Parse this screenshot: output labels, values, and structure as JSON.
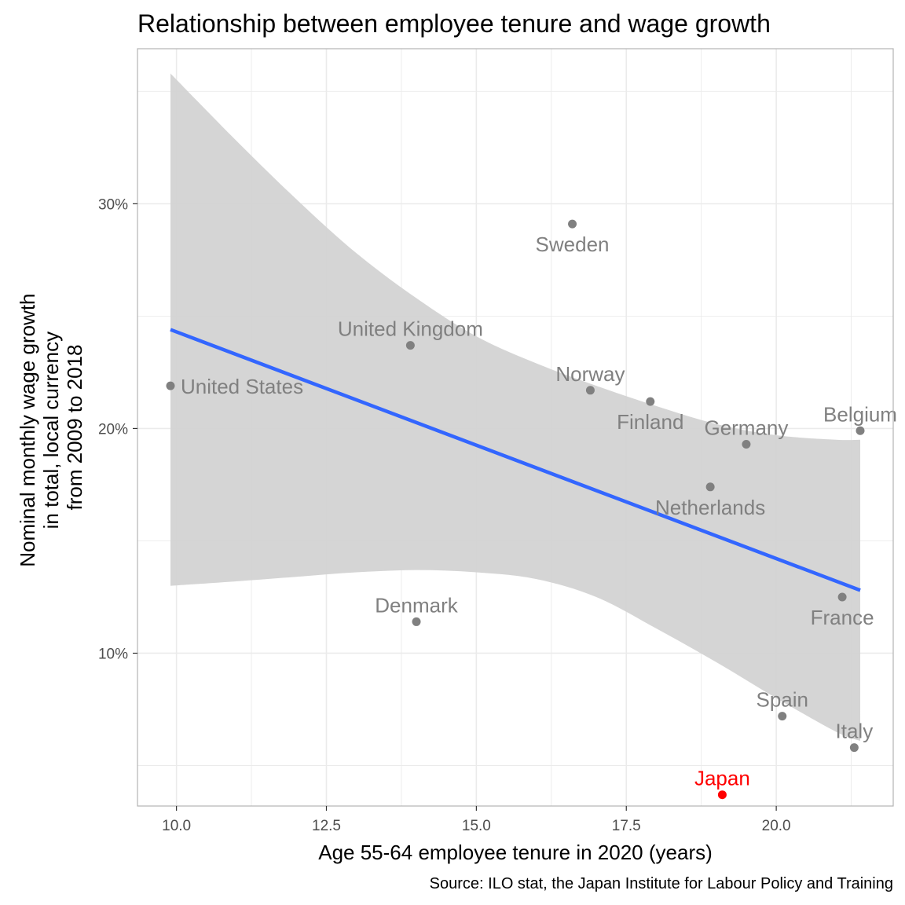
{
  "chart_data": {
    "type": "scatter",
    "title": "Relationship between employee tenure and wage growth",
    "xlabel": "Age 55-64 employee tenure in 2020 (years)",
    "ylabel_lines": [
      "Nominal monthly wage growth",
      "in total, local currency",
      "from 2009 to 2018"
    ],
    "caption": "Source: ILO stat, the Japan Institute for Labour Policy and Training",
    "xlim": [
      9.35,
      21.95
    ],
    "ylim": [
      3.2,
      36.9
    ],
    "x_ticks": [
      {
        "value": 10.0,
        "label": "10.0"
      },
      {
        "value": 12.5,
        "label": "12.5"
      },
      {
        "value": 15.0,
        "label": "15.0"
      },
      {
        "value": 17.5,
        "label": "17.5"
      },
      {
        "value": 20.0,
        "label": "20.0"
      }
    ],
    "y_ticks": [
      {
        "value": 10,
        "label": "10%"
      },
      {
        "value": 20,
        "label": "20%"
      },
      {
        "value": 30,
        "label": "30%"
      }
    ],
    "y_minor_ticks": [
      5,
      15,
      25,
      35
    ],
    "grid": true,
    "colors": {
      "point": "#808080",
      "highlight": "#ff0000",
      "fit_line": "#3366ff",
      "ribbon": "#d3d3d3",
      "grid": "#ebebeb",
      "panel_border": "#b3b3b3"
    },
    "points": [
      {
        "country": "United States",
        "x": 9.9,
        "y": 21.9,
        "label_pos": "right"
      },
      {
        "country": "United Kingdom",
        "x": 13.9,
        "y": 23.7,
        "label_pos": "above"
      },
      {
        "country": "Denmark",
        "x": 14.0,
        "y": 11.4,
        "label_pos": "above"
      },
      {
        "country": "Sweden",
        "x": 16.6,
        "y": 29.1,
        "label_pos": "below"
      },
      {
        "country": "Norway",
        "x": 16.9,
        "y": 21.7,
        "label_pos": "above"
      },
      {
        "country": "Finland",
        "x": 17.9,
        "y": 21.2,
        "label_pos": "below"
      },
      {
        "country": "Netherlands",
        "x": 18.9,
        "y": 17.4,
        "label_pos": "below"
      },
      {
        "country": "Germany",
        "x": 19.5,
        "y": 19.3,
        "label_pos": "above"
      },
      {
        "country": "Japan",
        "x": 19.1,
        "y": 3.7,
        "label_pos": "above",
        "highlight": true
      },
      {
        "country": "Spain",
        "x": 20.1,
        "y": 7.2,
        "label_pos": "above"
      },
      {
        "country": "France",
        "x": 21.1,
        "y": 12.5,
        "label_pos": "below"
      },
      {
        "country": "Italy",
        "x": 21.3,
        "y": 5.8,
        "label_pos": "above"
      },
      {
        "country": "Belgium",
        "x": 21.4,
        "y": 19.9,
        "label_pos": "above"
      }
    ],
    "fit_line": {
      "x": [
        9.9,
        21.4
      ],
      "y": [
        24.4,
        12.8
      ]
    },
    "confidence_band": {
      "x": [
        9.9,
        11.0,
        12.0,
        13.0,
        14.0,
        15.0,
        16.0,
        17.0,
        18.0,
        19.0,
        20.0,
        21.0,
        21.4
      ],
      "upper": [
        35.8,
        32.8,
        30.2,
        27.8,
        25.8,
        24.1,
        22.9,
        21.9,
        21.0,
        20.2,
        19.7,
        19.5,
        19.5
      ],
      "lower": [
        13.0,
        13.2,
        13.4,
        13.6,
        13.7,
        13.6,
        13.3,
        12.5,
        11.1,
        9.6,
        8.0,
        6.5,
        6.1
      ]
    }
  }
}
